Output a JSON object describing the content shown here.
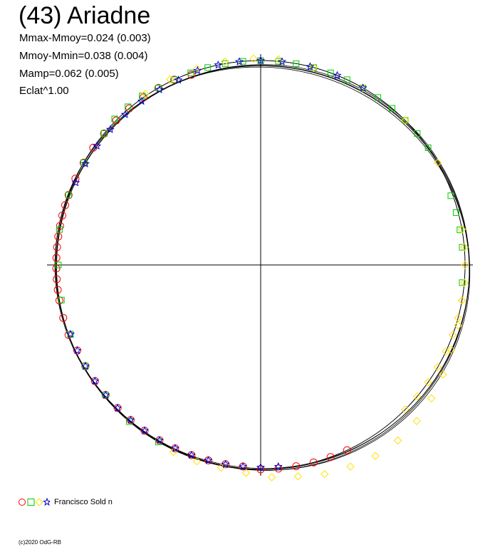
{
  "title": "(43) Ariadne",
  "stats": {
    "line1": "Mmax-Mmoy=0.024 (0.003)",
    "line2": "Mmoy-Mmin=0.038 (0.004)",
    "line3": "Mamp=0.062 (0.005)",
    "line4": "Eclat^1.00"
  },
  "legend": {
    "label": "Francisco Sold n"
  },
  "copyright": "(c)2020 OdG-RB",
  "chart_data": {
    "type": "scatter",
    "description_type": "polar lightcurve",
    "axes": "crosshair through center, no tick labels",
    "grid": false,
    "series": [
      {
        "marker": "circle",
        "color": "#ff0000",
        "points": [
          {
            "angle_deg": 110,
            "r": 0.99
          },
          {
            "angle_deg": 115,
            "r": 1.0
          },
          {
            "angle_deg": 120,
            "r": 1.0
          },
          {
            "angle_deg": 125,
            "r": 1.0
          },
          {
            "angle_deg": 130,
            "r": 1.0
          },
          {
            "angle_deg": 135,
            "r": 1.0
          },
          {
            "angle_deg": 140,
            "r": 1.0
          },
          {
            "angle_deg": 145,
            "r": 1.0
          },
          {
            "angle_deg": 150,
            "r": 1.0
          },
          {
            "angle_deg": 155,
            "r": 1.0
          },
          {
            "angle_deg": 160,
            "r": 1.0
          },
          {
            "angle_deg": 163,
            "r": 1.0
          },
          {
            "angle_deg": 166,
            "r": 1.0
          },
          {
            "angle_deg": 169,
            "r": 1.0
          },
          {
            "angle_deg": 172,
            "r": 1.0
          },
          {
            "angle_deg": 175,
            "r": 1.0
          },
          {
            "angle_deg": 178,
            "r": 1.0
          },
          {
            "angle_deg": 181,
            "r": 1.0
          },
          {
            "angle_deg": 184,
            "r": 1.0
          },
          {
            "angle_deg": 187,
            "r": 1.0
          },
          {
            "angle_deg": 190,
            "r": 1.0
          },
          {
            "angle_deg": 195,
            "r": 1.0
          },
          {
            "angle_deg": 200,
            "r": 1.0
          },
          {
            "angle_deg": 205,
            "r": 0.99
          },
          {
            "angle_deg": 210,
            "r": 0.99
          },
          {
            "angle_deg": 215,
            "r": 0.99
          },
          {
            "angle_deg": 220,
            "r": 0.99
          },
          {
            "angle_deg": 225,
            "r": 0.99
          },
          {
            "angle_deg": 230,
            "r": 0.99
          },
          {
            "angle_deg": 235,
            "r": 0.99
          },
          {
            "angle_deg": 240,
            "r": 0.99
          },
          {
            "angle_deg": 245,
            "r": 0.99
          },
          {
            "angle_deg": 250,
            "r": 0.99
          },
          {
            "angle_deg": 255,
            "r": 0.99
          },
          {
            "angle_deg": 260,
            "r": 0.99
          },
          {
            "angle_deg": 265,
            "r": 0.99
          },
          {
            "angle_deg": 270,
            "r": 1.0
          },
          {
            "angle_deg": 275,
            "r": 1.0
          },
          {
            "angle_deg": 280,
            "r": 1.0
          },
          {
            "angle_deg": 285,
            "r": 1.0
          },
          {
            "angle_deg": 290,
            "r": 1.0
          },
          {
            "angle_deg": 295,
            "r": 1.0
          }
        ]
      },
      {
        "marker": "square",
        "color": "#00cc00",
        "points": [
          {
            "angle_deg": -5,
            "r": 0.99
          },
          {
            "angle_deg": 5,
            "r": 0.99
          },
          {
            "angle_deg": 10,
            "r": 0.99
          },
          {
            "angle_deg": 15,
            "r": 0.99
          },
          {
            "angle_deg": 20,
            "r": 0.99
          },
          {
            "angle_deg": 35,
            "r": 1.0
          },
          {
            "angle_deg": 40,
            "r": 1.0
          },
          {
            "angle_deg": 45,
            "r": 1.0
          },
          {
            "angle_deg": 50,
            "r": 1.0
          },
          {
            "angle_deg": 55,
            "r": 1.0
          },
          {
            "angle_deg": 60,
            "r": 1.0
          },
          {
            "angle_deg": 65,
            "r": 1.0
          },
          {
            "angle_deg": 70,
            "r": 1.0
          },
          {
            "angle_deg": 75,
            "r": 1.0
          },
          {
            "angle_deg": 80,
            "r": 1.0
          },
          {
            "angle_deg": 85,
            "r": 1.0
          },
          {
            "angle_deg": 90,
            "r": 1.0
          },
          {
            "angle_deg": 95,
            "r": 1.0
          },
          {
            "angle_deg": 100,
            "r": 1.0
          },
          {
            "angle_deg": 105,
            "r": 1.0
          },
          {
            "angle_deg": 110,
            "r": 1.0
          },
          {
            "angle_deg": 115,
            "r": 1.0
          },
          {
            "angle_deg": 120,
            "r": 1.0
          },
          {
            "angle_deg": 125,
            "r": 1.01
          },
          {
            "angle_deg": 130,
            "r": 1.01
          },
          {
            "angle_deg": 135,
            "r": 1.01
          },
          {
            "angle_deg": 140,
            "r": 1.0
          },
          {
            "angle_deg": 150,
            "r": 1.0
          },
          {
            "angle_deg": 160,
            "r": 1.0
          },
          {
            "angle_deg": 170,
            "r": 1.0
          },
          {
            "angle_deg": 180,
            "r": 0.99
          },
          {
            "angle_deg": 190,
            "r": 0.99
          },
          {
            "angle_deg": 200,
            "r": 0.99
          },
          {
            "angle_deg": 210,
            "r": 0.99
          },
          {
            "angle_deg": 220,
            "r": 0.99
          },
          {
            "angle_deg": 230,
            "r": 1.0
          },
          {
            "angle_deg": 240,
            "r": 1.0
          }
        ]
      },
      {
        "marker": "diamond",
        "color": "#ffe000",
        "points": [
          {
            "angle_deg": -45,
            "r": 1.0
          },
          {
            "angle_deg": -40,
            "r": 1.0
          },
          {
            "angle_deg": -35,
            "r": 1.0
          },
          {
            "angle_deg": -30,
            "r": 1.0
          },
          {
            "angle_deg": -25,
            "r": 1.0
          },
          {
            "angle_deg": -20,
            "r": 1.0
          },
          {
            "angle_deg": -15,
            "r": 1.0
          },
          {
            "angle_deg": -10,
            "r": 1.0
          },
          {
            "angle_deg": -5,
            "r": 1.0
          },
          {
            "angle_deg": 0,
            "r": 1.0
          },
          {
            "angle_deg": 5,
            "r": 1.0
          },
          {
            "angle_deg": 10,
            "r": 1.0
          },
          {
            "angle_deg": 30,
            "r": 1.0
          },
          {
            "angle_deg": 45,
            "r": 1.0
          },
          {
            "angle_deg": 60,
            "r": 1.0
          },
          {
            "angle_deg": 75,
            "r": 1.0
          },
          {
            "angle_deg": 85,
            "r": 1.01
          },
          {
            "angle_deg": 92,
            "r": 1.01
          },
          {
            "angle_deg": 100,
            "r": 1.01
          },
          {
            "angle_deg": 108,
            "r": 1.01
          },
          {
            "angle_deg": 116,
            "r": 1.01
          },
          {
            "angle_deg": 124,
            "r": 1.01
          },
          {
            "angle_deg": 245,
            "r": 1.01
          },
          {
            "angle_deg": 252,
            "r": 1.01
          },
          {
            "angle_deg": 259,
            "r": 1.01
          },
          {
            "angle_deg": 266,
            "r": 1.02
          },
          {
            "angle_deg": 273,
            "r": 1.04
          },
          {
            "angle_deg": 280,
            "r": 1.05
          },
          {
            "angle_deg": 287,
            "r": 1.07
          },
          {
            "angle_deg": 294,
            "r": 1.08
          },
          {
            "angle_deg": 301,
            "r": 1.09
          },
          {
            "angle_deg": 308,
            "r": 1.09
          },
          {
            "angle_deg": 315,
            "r": 1.08
          },
          {
            "angle_deg": 322,
            "r": 1.06
          },
          {
            "angle_deg": 329,
            "r": 1.04
          },
          {
            "angle_deg": 336,
            "r": 1.02
          },
          {
            "angle_deg": 343,
            "r": 1.01
          },
          {
            "angle_deg": 350,
            "r": 1.0
          }
        ]
      },
      {
        "marker": "star",
        "color": "#0000cc",
        "points": [
          {
            "angle_deg": 60,
            "r": 1.0
          },
          {
            "angle_deg": 68,
            "r": 1.0
          },
          {
            "angle_deg": 76,
            "r": 1.0
          },
          {
            "angle_deg": 84,
            "r": 1.0
          },
          {
            "angle_deg": 90,
            "r": 1.0
          },
          {
            "angle_deg": 96,
            "r": 1.0
          },
          {
            "angle_deg": 102,
            "r": 1.0
          },
          {
            "angle_deg": 108,
            "r": 1.0
          },
          {
            "angle_deg": 114,
            "r": 0.99
          },
          {
            "angle_deg": 120,
            "r": 0.99
          },
          {
            "angle_deg": 126,
            "r": 0.99
          },
          {
            "angle_deg": 132,
            "r": 0.99
          },
          {
            "angle_deg": 138,
            "r": 0.99
          },
          {
            "angle_deg": 144,
            "r": 0.99
          },
          {
            "angle_deg": 150,
            "r": 0.99
          },
          {
            "angle_deg": 156,
            "r": 0.99
          },
          {
            "angle_deg": 200,
            "r": 0.99
          },
          {
            "angle_deg": 205,
            "r": 0.99
          },
          {
            "angle_deg": 210,
            "r": 0.99
          },
          {
            "angle_deg": 215,
            "r": 0.99
          },
          {
            "angle_deg": 220,
            "r": 0.99
          },
          {
            "angle_deg": 225,
            "r": 0.99
          },
          {
            "angle_deg": 230,
            "r": 0.99
          },
          {
            "angle_deg": 235,
            "r": 0.99
          },
          {
            "angle_deg": 240,
            "r": 0.99
          },
          {
            "angle_deg": 245,
            "r": 0.99
          },
          {
            "angle_deg": 250,
            "r": 0.99
          },
          {
            "angle_deg": 255,
            "r": 0.99
          },
          {
            "angle_deg": 260,
            "r": 0.99
          },
          {
            "angle_deg": 265,
            "r": 0.99
          },
          {
            "angle_deg": 270,
            "r": 0.99
          },
          {
            "angle_deg": 275,
            "r": 0.99
          }
        ]
      }
    ],
    "model_curves": [
      {
        "amp": 0.015,
        "harm2_phase": 0.3,
        "harm1": 0.012,
        "harm1_phase": 0.9,
        "color": "#000000"
      },
      {
        "amp": 0.012,
        "harm2_phase": 0.5,
        "harm1": 0.018,
        "harm1_phase": 1.0,
        "color": "#000000"
      },
      {
        "amp": 0.01,
        "harm2_phase": 0.1,
        "harm1": 0.015,
        "harm1_phase": 0.7,
        "color": "#000000"
      },
      {
        "amp": 0.018,
        "harm2_phase": 0.7,
        "harm1": 0.02,
        "harm1_phase": 1.1,
        "color": "#000000"
      }
    ],
    "reference_circle": {
      "r": 1.0,
      "color": "#000000"
    }
  }
}
